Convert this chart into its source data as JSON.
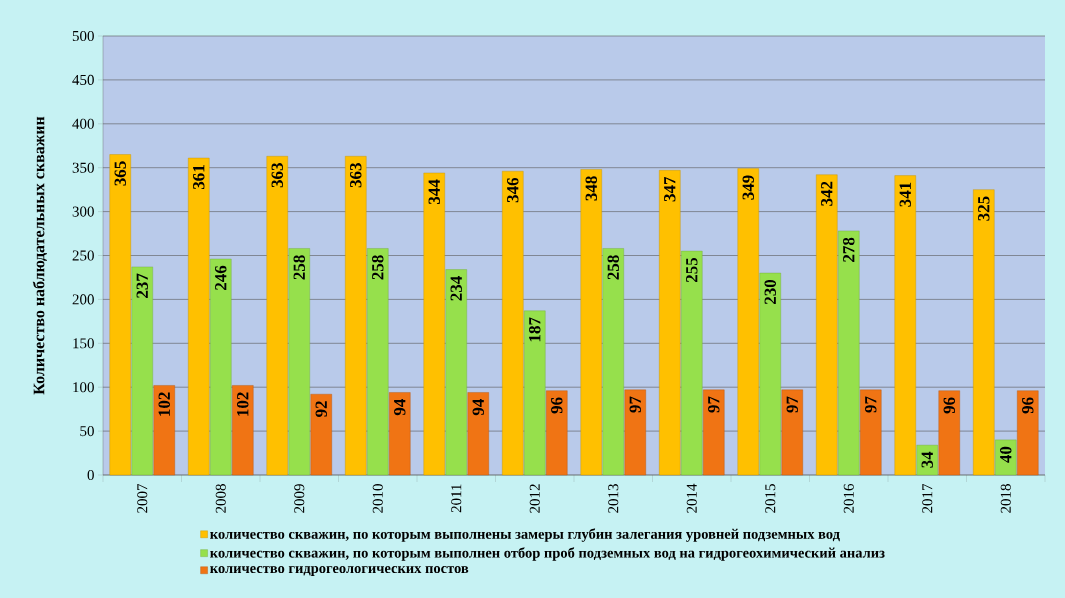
{
  "chart_data": {
    "type": "bar",
    "ylabel": "Количество наблюдательных скважин",
    "categories": [
      "2007",
      "2008",
      "2009",
      "2010",
      "2011",
      "2012",
      "2013",
      "2014",
      "2015",
      "2016",
      "2017",
      "2018"
    ],
    "series": [
      {
        "name": "количество скважин, по которым выполнены замеры глубин залегания уровней подземных вод",
        "color": "#ffc000",
        "values": [
          365,
          361,
          363,
          363,
          344,
          346,
          348,
          347,
          349,
          342,
          341,
          325
        ]
      },
      {
        "name": "количество скважин, по которым выполнен отбор проб подземных вод на гидрогеохимический анализ",
        "color": "#96e04c",
        "values": [
          237,
          246,
          258,
          258,
          234,
          187,
          258,
          255,
          230,
          278,
          34,
          40
        ]
      },
      {
        "name": "количество гидрогеологических постов",
        "color": "#f07414",
        "values": [
          102,
          102,
          92,
          94,
          94,
          96,
          97,
          97,
          97,
          97,
          96,
          96
        ]
      }
    ],
    "ylim": [
      0,
      500
    ],
    "yticks": [
      0,
      50,
      100,
      150,
      200,
      250,
      300,
      350,
      400,
      450,
      500
    ],
    "grid": "y",
    "legend": "bottom",
    "data_labels": true
  }
}
